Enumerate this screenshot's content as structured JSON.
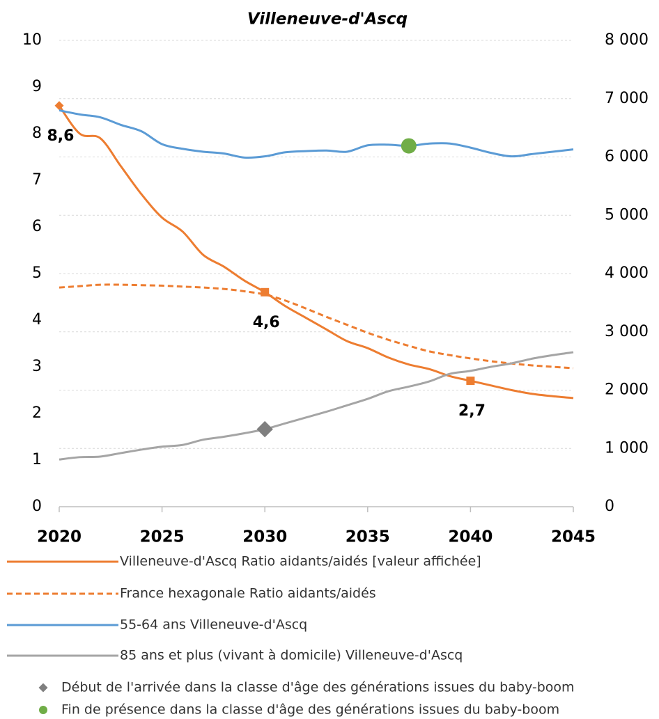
{
  "chart_data": {
    "type": "line",
    "title": "Villeneuve-d'Ascq",
    "x": [
      2020,
      2021,
      2022,
      2023,
      2024,
      2025,
      2026,
      2027,
      2028,
      2029,
      2030,
      2031,
      2032,
      2033,
      2034,
      2035,
      2036,
      2037,
      2038,
      2039,
      2040,
      2041,
      2042,
      2043,
      2044,
      2045
    ],
    "xlim": [
      2020,
      2045
    ],
    "xticks": [
      2020,
      2025,
      2030,
      2035,
      2040,
      2045
    ],
    "ylim": [
      0,
      10
    ],
    "yticks": [
      0,
      1,
      2,
      3,
      4,
      5,
      6,
      7,
      8,
      9,
      10
    ],
    "y2lim": [
      0,
      8000
    ],
    "y2ticks": [
      0,
      {
        "value": 1000,
        "label": "1 000"
      },
      {
        "value": 2000,
        "label": "2 000"
      },
      {
        "value": 3000,
        "label": "3 000"
      },
      {
        "value": 4000,
        "label": "4 000"
      },
      {
        "value": 5000,
        "label": "5 000"
      },
      {
        "value": 6000,
        "label": "6 000"
      },
      {
        "value": 7000,
        "label": "7 000"
      },
      {
        "value": 8000,
        "label": "8 000"
      }
    ],
    "grid": true,
    "series": [
      {
        "name": "Villeneuve-d'Ascq Ratio aidants/aidés [valeur affichée]",
        "color": "#ed7d31",
        "dash": false,
        "values": [
          8.6,
          8.0,
          7.9,
          7.3,
          6.7,
          6.2,
          5.9,
          5.4,
          5.15,
          4.85,
          4.6,
          4.3,
          4.05,
          3.8,
          3.55,
          3.4,
          3.2,
          3.05,
          2.95,
          2.8,
          2.7,
          2.6,
          2.5,
          2.42,
          2.37,
          2.33
        ],
        "point_labels": {
          "x": [
            2020,
            2030,
            2040
          ],
          "values": [
            8.6,
            4.6,
            2.7
          ],
          "value_labels": [
            "8,6",
            "4,6",
            "2,7"
          ],
          "markers": [
            "diamond",
            "square",
            "square"
          ]
        }
      },
      {
        "name": "France hexagonale Ratio aidants/aidés",
        "color": "#ed7d31",
        "dash": true,
        "values": [
          4.7,
          4.73,
          4.76,
          4.76,
          4.75,
          4.74,
          4.72,
          4.7,
          4.67,
          4.62,
          4.55,
          4.42,
          4.25,
          4.07,
          3.9,
          3.73,
          3.58,
          3.45,
          3.33,
          3.25,
          3.18,
          3.12,
          3.07,
          3.03,
          3.0,
          2.97
        ]
      },
      {
        "name": "55-64 ans Villeneuve-d'Ascq",
        "color": "#5b9bd5",
        "dash": false,
        "axis": "y2",
        "values": [
          6800,
          6730,
          6680,
          6550,
          6440,
          6220,
          6140,
          6090,
          6060,
          5990,
          6010,
          6080,
          6100,
          6110,
          6090,
          6200,
          6210,
          6190,
          6230,
          6230,
          6160,
          6070,
          6010,
          6050,
          6090,
          6130
        ]
      },
      {
        "name": "85 ans et plus (vivant à domicile) Villeneuve-d'Ascq",
        "color": "#a5a5a5",
        "dash": false,
        "axis": "y2",
        "values": [
          810,
          850,
          860,
          920,
          980,
          1030,
          1060,
          1150,
          1200,
          1260,
          1330,
          1430,
          1530,
          1630,
          1740,
          1850,
          1980,
          2060,
          2150,
          2280,
          2330,
          2400,
          2460,
          2540,
          2600,
          2650
        ]
      },
      {
        "name": "Début de l'arrivée dans la classe d'âge des générations issues du baby-boom",
        "color": "#7f7f7f",
        "marker": "diamond",
        "axis": "y2",
        "x": [
          2030
        ],
        "values": [
          1330
        ]
      },
      {
        "name": "Fin de présence dans la classe d'âge des générations issues du baby-boom",
        "color": "#70ad47",
        "marker": "circle",
        "axis": "y2",
        "x": [
          2037
        ],
        "values": [
          6190
        ]
      }
    ]
  }
}
